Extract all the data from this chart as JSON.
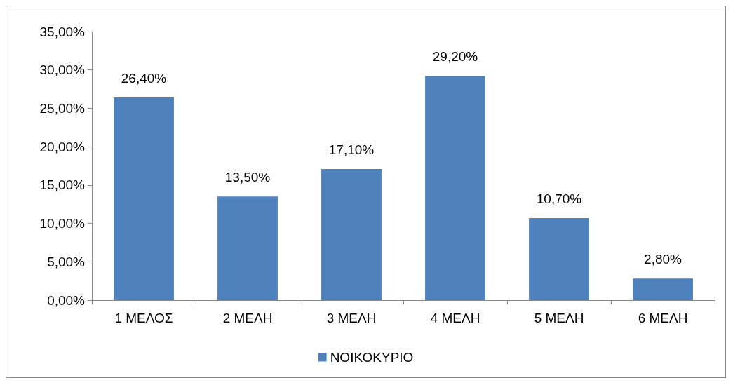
{
  "chart_data": {
    "type": "bar",
    "categories": [
      "1 ΜΕΛΟΣ",
      "2 ΜΕΛΗ",
      "3 ΜΕΛΗ",
      "4 ΜΕΛΗ",
      "5 ΜΕΛΗ",
      "6 ΜΕΛΗ"
    ],
    "series": [
      {
        "name": "ΝΟΙΚΟΚΥΡΙΟ",
        "color": "#4f81bd",
        "values": [
          26.4,
          13.5,
          17.1,
          29.2,
          10.7,
          2.8
        ],
        "value_labels": [
          "26,40%",
          "13,50%",
          "17,10%",
          "29,20%",
          "10,70%",
          "2,80%"
        ]
      }
    ],
    "ylim": [
      0,
      35
    ],
    "yticks": [
      {
        "value": 0,
        "label": "0,00%"
      },
      {
        "value": 5,
        "label": "5,00%"
      },
      {
        "value": 10,
        "label": "10,00%"
      },
      {
        "value": 15,
        "label": "15,00%"
      },
      {
        "value": 20,
        "label": "20,00%"
      },
      {
        "value": 25,
        "label": "25,00%"
      },
      {
        "value": 30,
        "label": "30,00%"
      },
      {
        "value": 35,
        "label": "35,00%"
      }
    ],
    "grid": false,
    "legend": "bottom"
  }
}
